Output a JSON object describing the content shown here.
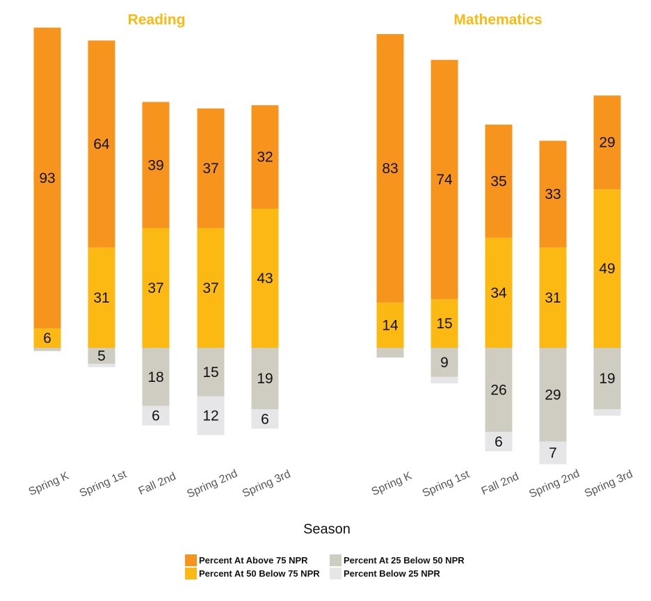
{
  "colors": {
    "above75": "#F7941D",
    "p50to75": "#FDB913",
    "p25to50": "#CFCCC1",
    "below25": "#E6E6E8",
    "title": "#FDB913"
  },
  "chart_data": {
    "type": "bar",
    "stacked": "diverging",
    "xlabel": "Season",
    "categories": [
      "Spring K",
      "Spring 1st",
      "Fall 2nd",
      "Spring 2nd",
      "Spring 3rd"
    ],
    "legend_position": "bottom",
    "grid": false,
    "series_names": [
      "Percent At Above 75 NPR",
      "Percent At 50 Below 75 NPR",
      "Percent At 25 Below 50 NPR",
      "Percent Below 25 NPR"
    ],
    "panels": [
      {
        "title": "Reading",
        "series": [
          {
            "name": "Percent At Above 75 NPR",
            "values": [
              93,
              64,
              39,
              37,
              32
            ],
            "labels": [
              "93",
              "64",
              "39",
              "37",
              "32"
            ]
          },
          {
            "name": "Percent At 50 Below 75 NPR",
            "values": [
              6,
              31,
              37,
              37,
              43
            ],
            "labels": [
              "6",
              "31",
              "37",
              "37",
              "43"
            ]
          },
          {
            "name": "Percent At 25 Below 50 NPR",
            "values": [
              1,
              5,
              18,
              15,
              19
            ],
            "labels": [
              "",
              "5",
              "18",
              "15",
              "19"
            ]
          },
          {
            "name": "Percent Below 25 NPR",
            "values": [
              0,
              1,
              6,
              12,
              6
            ],
            "labels": [
              "",
              "",
              "6",
              "12",
              "6"
            ]
          }
        ]
      },
      {
        "title": "Mathematics",
        "series": [
          {
            "name": "Percent At Above 75 NPR",
            "values": [
              83,
              74,
              35,
              33,
              29
            ],
            "labels": [
              "83",
              "74",
              "35",
              "33",
              "29"
            ]
          },
          {
            "name": "Percent At 50 Below 75 NPR",
            "values": [
              14,
              15,
              34,
              31,
              49
            ],
            "labels": [
              "14",
              "15",
              "34",
              "31",
              "49"
            ]
          },
          {
            "name": "Percent At 25 Below 50 NPR",
            "values": [
              3,
              9,
              26,
              29,
              19
            ],
            "labels": [
              "",
              "9",
              "26",
              "29",
              "19"
            ]
          },
          {
            "name": "Percent Below 25 NPR",
            "values": [
              0,
              2,
              6,
              7,
              2
            ],
            "labels": [
              "",
              "",
              "6",
              "7",
              ""
            ]
          }
        ]
      }
    ]
  }
}
